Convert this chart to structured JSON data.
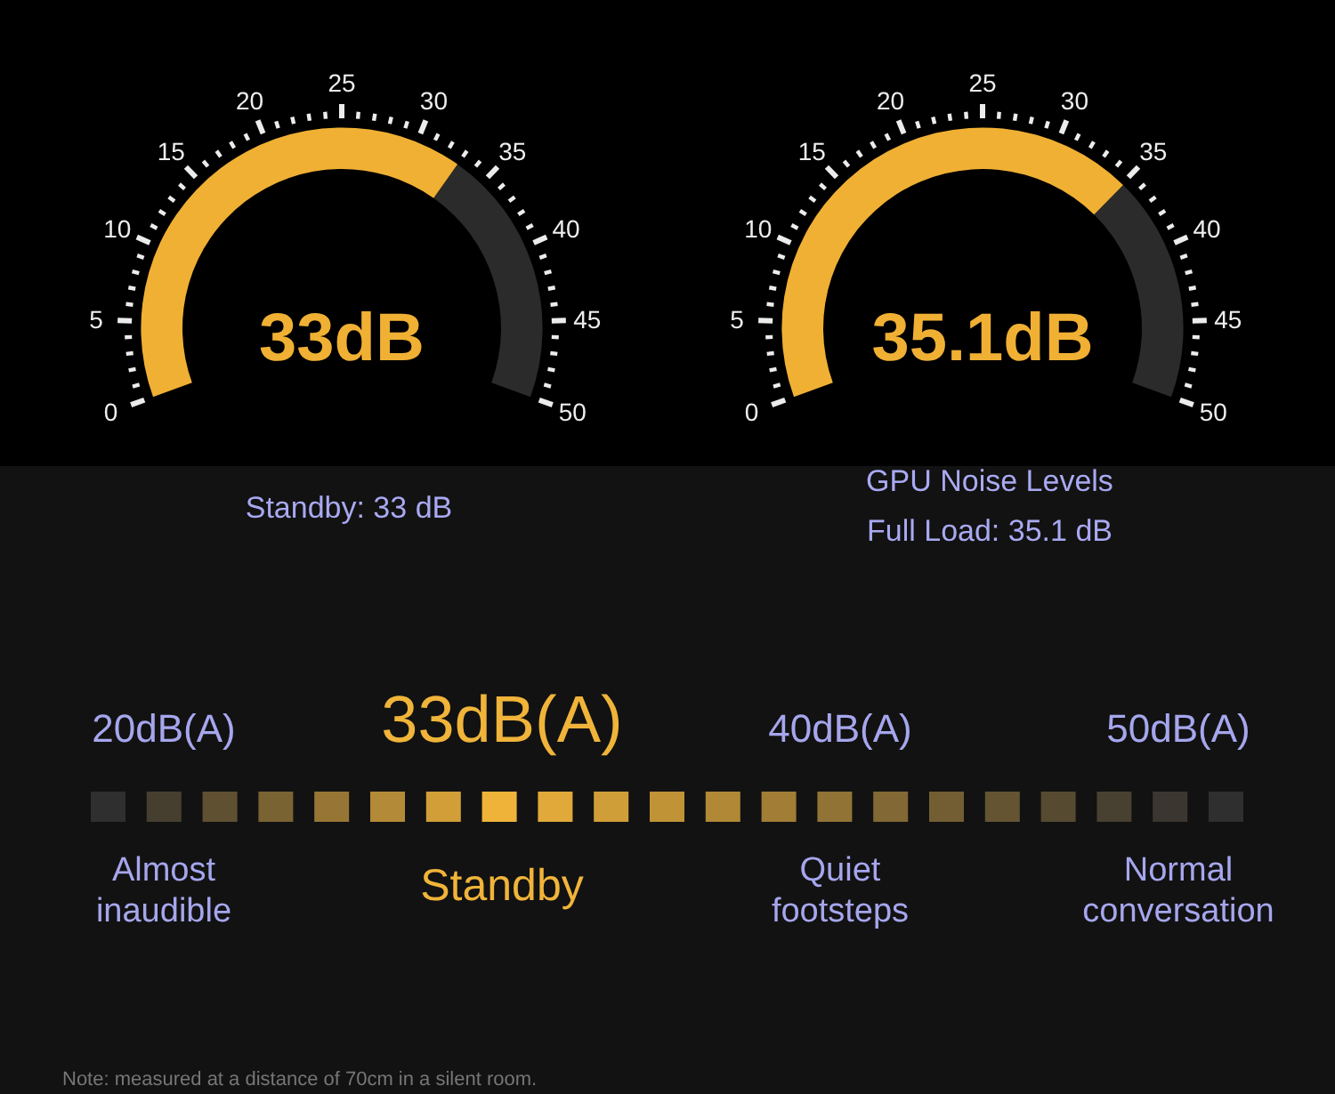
{
  "chart_data": [
    {
      "type": "other",
      "title": "Standby: 33 dB",
      "values": [
        33
      ],
      "color": "#f0b034",
      "value_labels": [
        "33dB"
      ],
      "annotations": [
        "0",
        "5",
        "10",
        "15",
        "20",
        "25",
        "30",
        "35",
        "40",
        "45",
        "50"
      ]
    },
    {
      "type": "other",
      "title": "GPU Noise Levels",
      "subtitle": "Full Load: 35.1 dB",
      "values": [
        35.1
      ],
      "color": "#f0b034",
      "value_labels": [
        "35.1dB"
      ],
      "annotations": [
        "0",
        "5",
        "10",
        "15",
        "20",
        "25",
        "30",
        "35",
        "40",
        "45",
        "50"
      ]
    },
    {
      "type": "other",
      "categories": [
        "20dB(A)",
        "33dB(A)",
        "40dB(A)",
        "50dB(A)"
      ],
      "colors": [
        "#a6a6ee",
        "#f0b43a",
        "#a6a6ee",
        "#a6a6ee"
      ],
      "annotations": [
        {
          "text": "Almost inaudible",
          "x": "20dB(A)"
        },
        {
          "text": "Standby",
          "x": "33dB(A)"
        },
        {
          "text": "Quiet footsteps",
          "x": "40dB(A)"
        },
        {
          "text": "Normal conversation",
          "x": "50dB(A)"
        },
        "Note: measured at a distance of 70cm in a silent room."
      ]
    }
  ]
}
